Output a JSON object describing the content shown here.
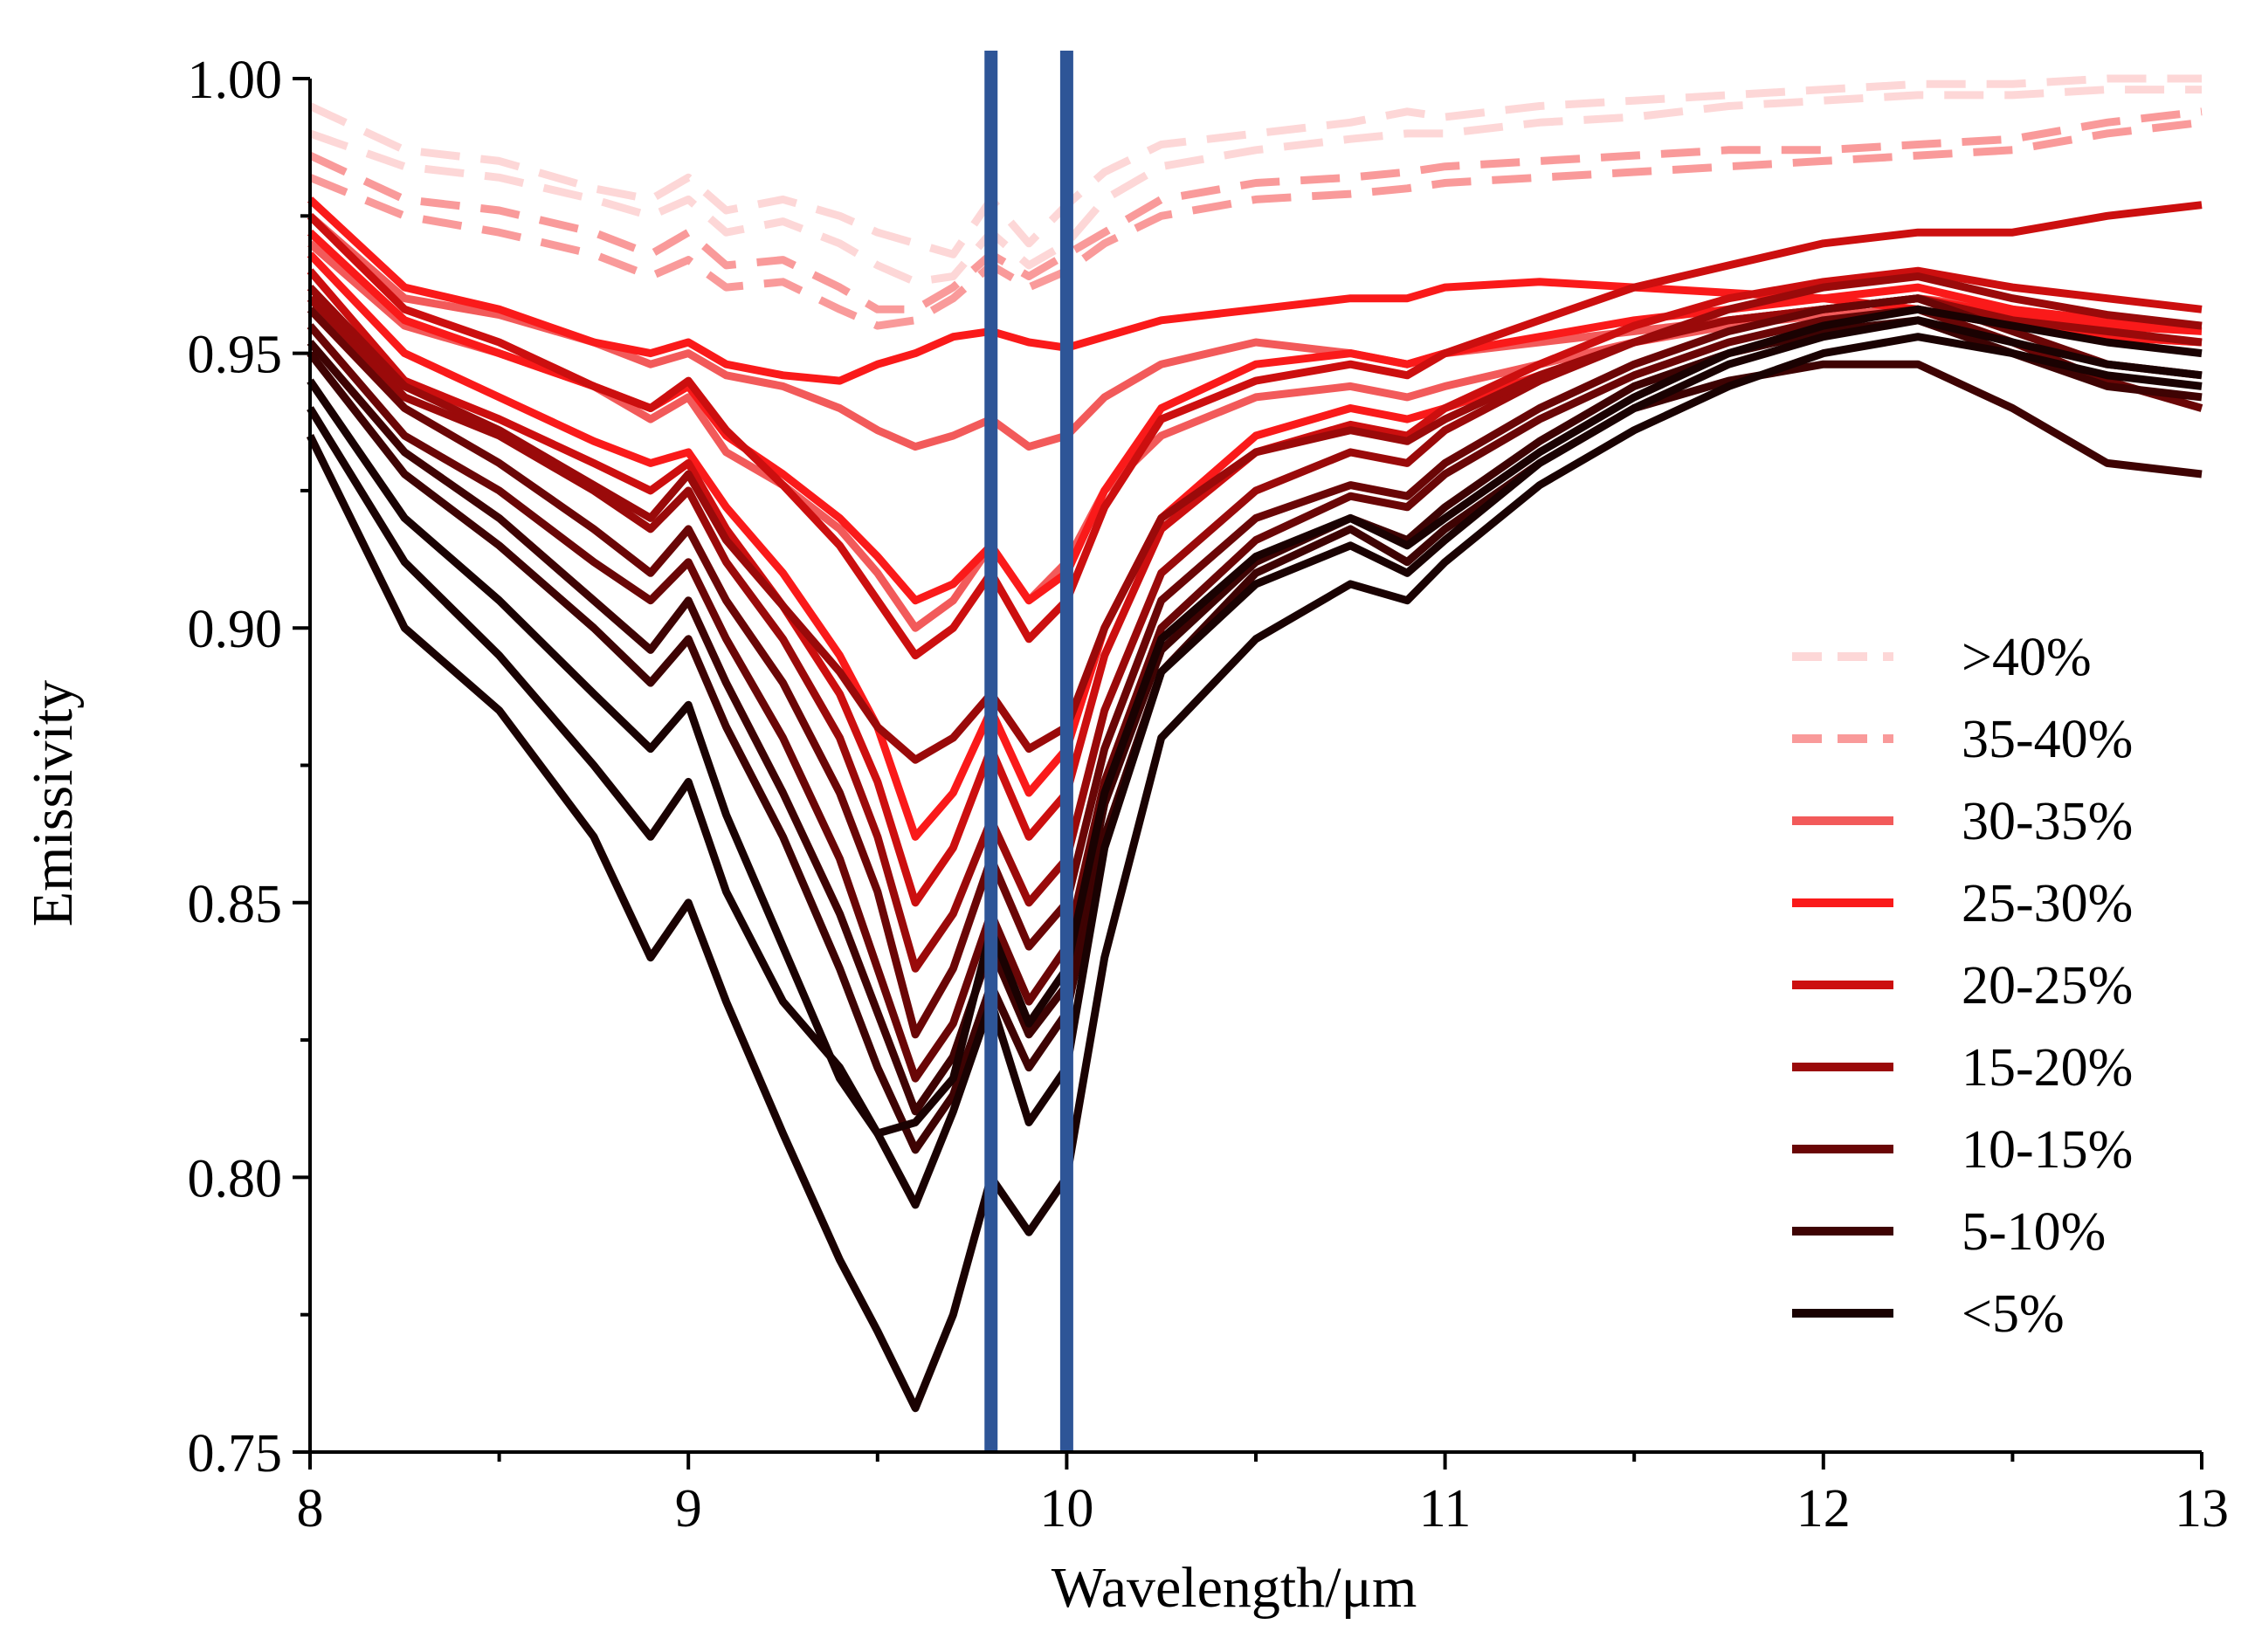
{
  "chart_data": {
    "type": "line",
    "title": "",
    "xlabel": "Wavelength/μm",
    "ylabel": "Emissivity",
    "xlim": [
      8,
      13
    ],
    "ylim": [
      0.75,
      1.0
    ],
    "x_ticks": [
      8,
      9,
      10,
      11,
      12,
      13
    ],
    "x_tick_labels": [
      "8",
      "9",
      "10",
      "11",
      "12",
      "13"
    ],
    "y_ticks": [
      0.75,
      0.8,
      0.85,
      0.9,
      0.95,
      1.0
    ],
    "y_tick_labels": [
      "0.75",
      "0.80",
      "0.85",
      "0.90",
      "0.95",
      "1.00"
    ],
    "grid": false,
    "legend_position": "right",
    "reference_lines": [
      {
        "x": 9.8,
        "color": "#2E5597"
      },
      {
        "x": 10.0,
        "color": "#2E5597"
      }
    ],
    "legend": [
      {
        "label": ">40%",
        "color": "#FDD7D7",
        "dash": true
      },
      {
        "label": "35-40%",
        "color": "#F99A9A",
        "dash": true
      },
      {
        "label": "30-35%",
        "color": "#F25A5A",
        "dash": false
      },
      {
        "label": "25-30%",
        "color": "#FA1A1A",
        "dash": false
      },
      {
        "label": "20-25%",
        "color": "#CC0F0F",
        "dash": false
      },
      {
        "label": "15-20%",
        "color": "#9A0A0A",
        "dash": false
      },
      {
        "label": "10-15%",
        "color": "#6A0606",
        "dash": false
      },
      {
        "label": "5-10%",
        "color": "#3E0303",
        "dash": false
      },
      {
        "label": "<5%",
        "color": "#1A0202",
        "dash": false
      }
    ],
    "x": [
      8.0,
      8.25,
      8.5,
      8.75,
      8.9,
      9.0,
      9.1,
      9.25,
      9.4,
      9.5,
      9.6,
      9.7,
      9.8,
      9.9,
      10.0,
      10.1,
      10.25,
      10.5,
      10.75,
      10.9,
      11.0,
      11.25,
      11.5,
      11.75,
      12.0,
      12.25,
      12.5,
      12.75,
      13.0
    ],
    "series": [
      {
        "name": ">40%",
        "color": "#FDD7D7",
        "dash": true,
        "values": [
          0.995,
          0.987,
          0.985,
          0.98,
          0.978,
          0.982,
          0.976,
          0.978,
          0.975,
          0.972,
          0.97,
          0.968,
          0.978,
          0.97,
          0.977,
          0.983,
          0.988,
          0.99,
          0.992,
          0.994,
          0.993,
          0.995,
          0.996,
          0.997,
          0.998,
          0.999,
          0.999,
          1.0,
          1.0
        ]
      },
      {
        "name": ">40%",
        "color": "#FDD7D7",
        "dash": true,
        "values": [
          0.99,
          0.984,
          0.982,
          0.978,
          0.975,
          0.978,
          0.972,
          0.974,
          0.97,
          0.966,
          0.963,
          0.964,
          0.972,
          0.966,
          0.97,
          0.978,
          0.984,
          0.987,
          0.989,
          0.99,
          0.99,
          0.992,
          0.993,
          0.995,
          0.996,
          0.997,
          0.997,
          0.998,
          0.998
        ]
      },
      {
        "name": "35-40%",
        "color": "#F99A9A",
        "dash": true,
        "values": [
          0.986,
          0.978,
          0.976,
          0.972,
          0.968,
          0.972,
          0.966,
          0.967,
          0.962,
          0.958,
          0.958,
          0.962,
          0.968,
          0.964,
          0.968,
          0.972,
          0.978,
          0.981,
          0.982,
          0.983,
          0.984,
          0.985,
          0.986,
          0.987,
          0.987,
          0.988,
          0.989,
          0.992,
          0.994
        ]
      },
      {
        "name": "35-40%",
        "color": "#F99A9A",
        "dash": true,
        "values": [
          0.982,
          0.975,
          0.972,
          0.968,
          0.964,
          0.967,
          0.962,
          0.963,
          0.958,
          0.955,
          0.956,
          0.96,
          0.966,
          0.962,
          0.965,
          0.97,
          0.975,
          0.978,
          0.979,
          0.98,
          0.981,
          0.982,
          0.983,
          0.984,
          0.985,
          0.986,
          0.987,
          0.99,
          0.992
        ]
      },
      {
        "name": "30-35%",
        "color": "#F25A5A",
        "dash": false,
        "values": [
          0.975,
          0.96,
          0.957,
          0.952,
          0.948,
          0.95,
          0.946,
          0.944,
          0.94,
          0.936,
          0.933,
          0.935,
          0.938,
          0.933,
          0.935,
          0.942,
          0.948,
          0.952,
          0.95,
          0.948,
          0.95,
          0.952,
          0.954,
          0.956,
          0.958,
          0.96,
          0.958,
          0.955,
          0.955
        ]
      },
      {
        "name": "30-35%",
        "color": "#F25A5A",
        "dash": false,
        "values": [
          0.97,
          0.955,
          0.95,
          0.944,
          0.938,
          0.942,
          0.932,
          0.926,
          0.918,
          0.91,
          0.9,
          0.905,
          0.915,
          0.905,
          0.912,
          0.925,
          0.935,
          0.942,
          0.944,
          0.942,
          0.944,
          0.948,
          0.952,
          0.955,
          0.957,
          0.958,
          0.955,
          0.953,
          0.952
        ]
      },
      {
        "name": "25-30%",
        "color": "#FA1A1A",
        "dash": false,
        "values": [
          0.978,
          0.962,
          0.958,
          0.952,
          0.95,
          0.952,
          0.948,
          0.946,
          0.945,
          0.948,
          0.95,
          0.953,
          0.954,
          0.952,
          0.951,
          0.953,
          0.956,
          0.958,
          0.96,
          0.96,
          0.962,
          0.963,
          0.962,
          0.961,
          0.96,
          0.958,
          0.955,
          0.953,
          0.952
        ]
      },
      {
        "name": "25-30%",
        "color": "#FA1A1A",
        "dash": false,
        "values": [
          0.972,
          0.956,
          0.95,
          0.944,
          0.94,
          0.944,
          0.935,
          0.928,
          0.92,
          0.913,
          0.905,
          0.908,
          0.915,
          0.905,
          0.91,
          0.925,
          0.94,
          0.948,
          0.95,
          0.948,
          0.95,
          0.953,
          0.956,
          0.958,
          0.96,
          0.962,
          0.958,
          0.956,
          0.955
        ]
      },
      {
        "name": "25-30%",
        "color": "#FA1A1A",
        "dash": false,
        "values": [
          0.968,
          0.95,
          0.942,
          0.934,
          0.93,
          0.932,
          0.922,
          0.91,
          0.895,
          0.882,
          0.862,
          0.87,
          0.885,
          0.87,
          0.878,
          0.9,
          0.92,
          0.935,
          0.94,
          0.938,
          0.94,
          0.946,
          0.952,
          0.956,
          0.958,
          0.96,
          0.957,
          0.955,
          0.954
        ]
      },
      {
        "name": "20-25%",
        "color": "#CC0F0F",
        "dash": false,
        "values": [
          0.975,
          0.958,
          0.952,
          0.944,
          0.94,
          0.945,
          0.936,
          0.926,
          0.915,
          0.905,
          0.895,
          0.9,
          0.91,
          0.898,
          0.905,
          0.922,
          0.938,
          0.945,
          0.948,
          0.946,
          0.95,
          0.956,
          0.962,
          0.966,
          0.97,
          0.972,
          0.972,
          0.975,
          0.977
        ]
      },
      {
        "name": "20-25%",
        "color": "#CC0F0F",
        "dash": false,
        "values": [
          0.965,
          0.945,
          0.938,
          0.93,
          0.925,
          0.93,
          0.918,
          0.904,
          0.888,
          0.872,
          0.85,
          0.86,
          0.878,
          0.862,
          0.87,
          0.895,
          0.918,
          0.932,
          0.937,
          0.935,
          0.94,
          0.948,
          0.955,
          0.96,
          0.963,
          0.965,
          0.962,
          0.96,
          0.958
        ]
      },
      {
        "name": "15-20%",
        "color": "#9A0A0A",
        "dash": false,
        "values": [
          0.96,
          0.942,
          0.935,
          0.925,
          0.918,
          0.925,
          0.912,
          0.898,
          0.88,
          0.862,
          0.838,
          0.848,
          0.865,
          0.85,
          0.858,
          0.885,
          0.91,
          0.925,
          0.932,
          0.93,
          0.936,
          0.945,
          0.952,
          0.958,
          0.962,
          0.964,
          0.96,
          0.957,
          0.955
        ]
      },
      {
        "name": "15-20%",
        "color": "#9A0A0A",
        "dash": false,
        "values": [
          0.962,
          0.944,
          0.936,
          0.926,
          0.92,
          0.928,
          0.916,
          0.904,
          0.892,
          0.882,
          0.876,
          0.88,
          0.888,
          0.878,
          0.882,
          0.9,
          0.92,
          0.932,
          0.936,
          0.934,
          0.938,
          0.946,
          0.952,
          0.956,
          0.958,
          0.96,
          0.956,
          0.954,
          0.952
        ]
      },
      {
        "name": "10-15%",
        "color": "#6A0606",
        "dash": false,
        "values": [
          0.955,
          0.935,
          0.925,
          0.912,
          0.905,
          0.912,
          0.898,
          0.88,
          0.858,
          0.838,
          0.818,
          0.828,
          0.848,
          0.832,
          0.842,
          0.872,
          0.9,
          0.916,
          0.924,
          0.922,
          0.928,
          0.938,
          0.946,
          0.952,
          0.956,
          0.958,
          0.952,
          0.945,
          0.94
        ]
      },
      {
        "name": "10-15%",
        "color": "#6A0606",
        "dash": false,
        "values": [
          0.958,
          0.94,
          0.93,
          0.918,
          0.91,
          0.918,
          0.905,
          0.89,
          0.87,
          0.852,
          0.826,
          0.838,
          0.858,
          0.842,
          0.85,
          0.878,
          0.905,
          0.92,
          0.926,
          0.924,
          0.93,
          0.94,
          0.948,
          0.954,
          0.958,
          0.96,
          0.954,
          0.948,
          0.946
        ]
      },
      {
        "name": "5-10%",
        "color": "#3E0303",
        "dash": false,
        "values": [
          0.95,
          0.928,
          0.915,
          0.9,
          0.89,
          0.898,
          0.882,
          0.862,
          0.838,
          0.82,
          0.805,
          0.815,
          0.835,
          0.82,
          0.83,
          0.862,
          0.892,
          0.91,
          0.918,
          0.912,
          0.918,
          0.93,
          0.94,
          0.945,
          0.948,
          0.948,
          0.94,
          0.93,
          0.928
        ]
      },
      {
        "name": "5-10%",
        "color": "#3E0303",
        "dash": false,
        "values": [
          0.952,
          0.932,
          0.92,
          0.905,
          0.896,
          0.905,
          0.89,
          0.87,
          0.848,
          0.83,
          0.812,
          0.822,
          0.842,
          0.826,
          0.835,
          0.868,
          0.896,
          0.912,
          0.92,
          0.916,
          0.922,
          0.934,
          0.944,
          0.95,
          0.954,
          0.956,
          0.95,
          0.944,
          0.942
        ]
      },
      {
        "name": "<5%",
        "color": "#1A0202",
        "dash": false,
        "values": [
          0.945,
          0.92,
          0.905,
          0.888,
          0.878,
          0.886,
          0.866,
          0.842,
          0.818,
          0.808,
          0.81,
          0.818,
          0.845,
          0.828,
          0.838,
          0.87,
          0.898,
          0.913,
          0.92,
          0.915,
          0.92,
          0.932,
          0.942,
          0.95,
          0.955,
          0.958,
          0.955,
          0.952,
          0.95
        ]
      },
      {
        "name": "<5%",
        "color": "#1A0202",
        "dash": false,
        "values": [
          0.94,
          0.912,
          0.895,
          0.875,
          0.862,
          0.872,
          0.852,
          0.832,
          0.82,
          0.808,
          0.795,
          0.812,
          0.832,
          0.81,
          0.82,
          0.86,
          0.892,
          0.908,
          0.915,
          0.91,
          0.916,
          0.93,
          0.94,
          0.948,
          0.953,
          0.956,
          0.952,
          0.948,
          0.946
        ]
      },
      {
        "name": "<5%",
        "color": "#1A0202",
        "dash": false,
        "values": [
          0.935,
          0.9,
          0.885,
          0.862,
          0.84,
          0.85,
          0.832,
          0.808,
          0.785,
          0.772,
          0.758,
          0.775,
          0.8,
          0.79,
          0.8,
          0.84,
          0.88,
          0.898,
          0.908,
          0.905,
          0.912,
          0.926,
          0.936,
          0.944,
          0.95,
          0.953,
          0.95,
          0.946,
          0.944
        ]
      }
    ]
  }
}
